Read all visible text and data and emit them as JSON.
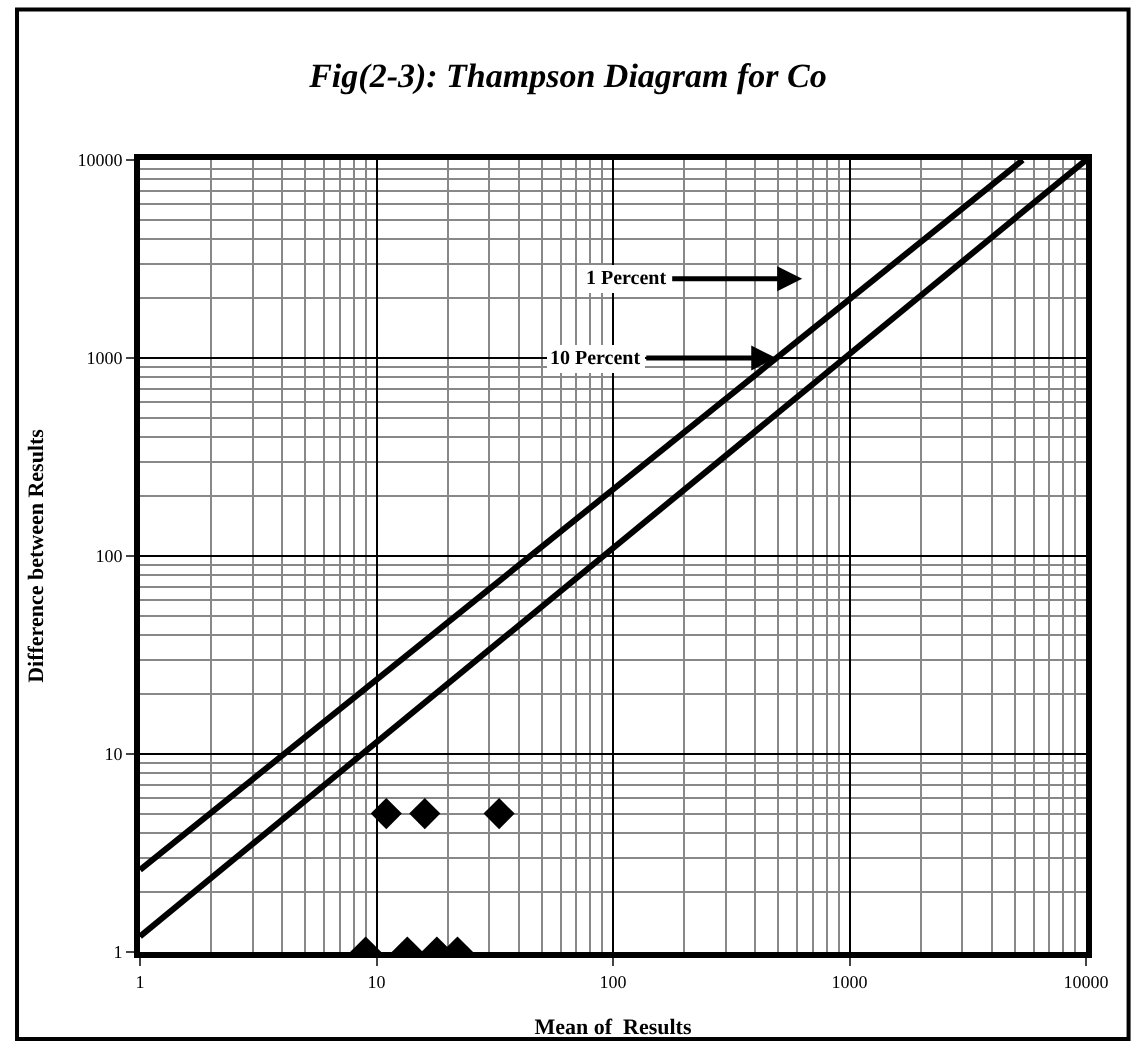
{
  "chart_data": {
    "type": "scatter",
    "title": "Fig(2-3): Thampson Diagram for Co",
    "xlabel": "Mean of  Results",
    "ylabel": "Difference between Results",
    "log": "xy",
    "grid": true,
    "marker": "diamond",
    "xlim": [
      1,
      10000
    ],
    "ylim": [
      1,
      10000
    ],
    "xticks": [
      1,
      10,
      100,
      1000,
      10000
    ],
    "yticks": [
      1,
      10,
      100,
      1000,
      10000
    ],
    "series": [
      {
        "color": "#000000",
        "x": [
          11,
          16,
          33,
          9,
          13.5,
          18,
          22
        ],
        "values": [
          5,
          5,
          5,
          1,
          1,
          1,
          1
        ]
      },
      {
        "type": "line",
        "marker": "none",
        "color": "#000000",
        "x": [
          1,
          5400
        ],
        "values": [
          2.6,
          10000
        ]
      },
      {
        "type": "line",
        "marker": "none",
        "color": "#000000",
        "x": [
          1,
          10000
        ],
        "values": [
          1.2,
          10000
        ]
      }
    ],
    "annotations": [
      "1 Percent",
      {
        "text": "10 Percent",
        "x": 490,
        "y": 1000
      }
    ]
  }
}
